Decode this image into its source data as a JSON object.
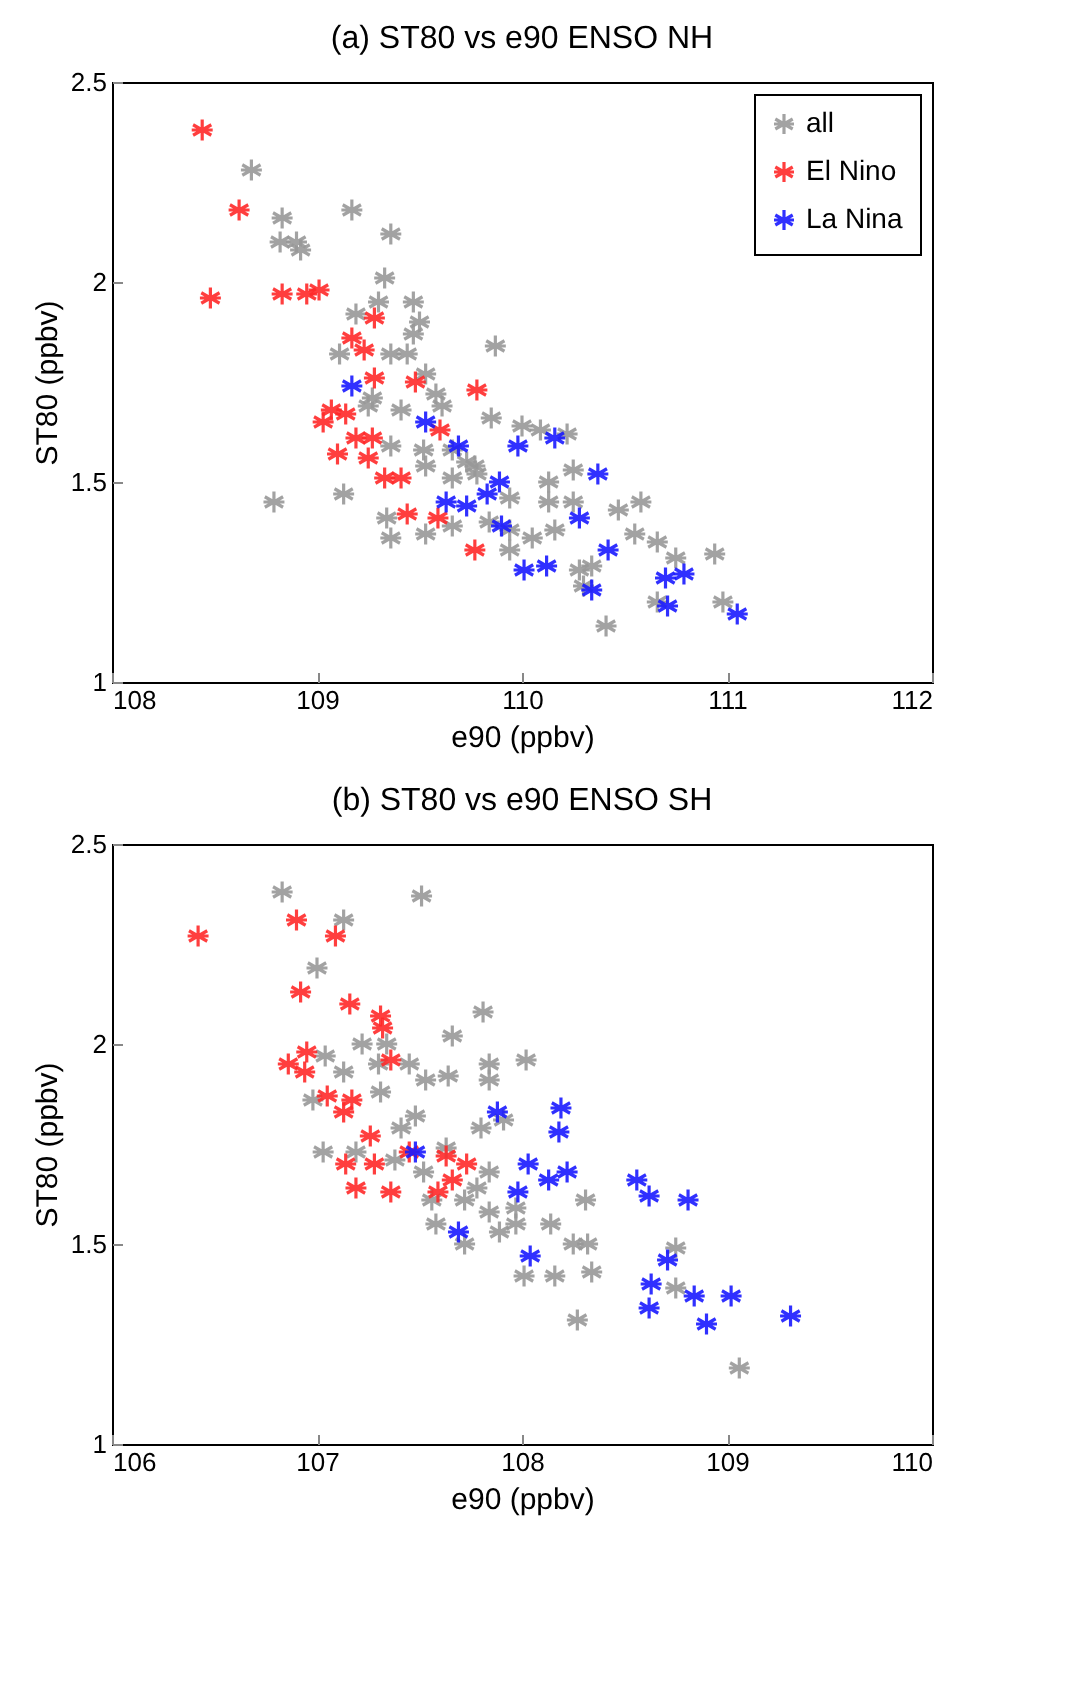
{
  "chart_data": [
    {
      "type": "scatter",
      "title": "(a) ST80 vs e90 ENSO NH",
      "xlabel": "e90 (ppbv)",
      "ylabel": "ST80 (ppbv)",
      "xlim": [
        108,
        112
      ],
      "xticks": [
        108,
        109,
        110,
        111,
        112
      ],
      "ylim": [
        1,
        2.5
      ],
      "yticks": [
        1,
        1.5,
        2,
        2.5
      ],
      "marker": "cross",
      "legend": "top right",
      "series": [
        {
          "name": "all",
          "color": "#999999",
          "x": [
            108.68,
            108.83,
            108.82,
            108.9,
            108.92,
            109.17,
            109.36,
            109.33,
            109.3,
            109.19,
            109.47,
            109.5,
            109.47,
            109.87,
            109.11,
            109.36,
            109.44,
            109.53,
            109.27,
            109.25,
            109.58,
            109.61,
            109.41,
            109.85,
            110.0,
            110.09,
            110.22,
            109.36,
            109.52,
            109.66,
            109.77,
            109.53,
            109.66,
            109.78,
            110.13,
            110.25,
            109.94,
            110.13,
            110.25,
            110.47,
            110.58,
            108.79,
            109.13,
            109.34,
            109.36,
            109.53,
            109.66,
            109.94,
            110.05,
            109.94,
            110.16,
            110.55,
            110.66,
            110.75,
            110.94,
            110.28,
            110.34,
            110.3,
            110.98,
            110.66,
            110.41,
            109.73,
            109.84
          ],
          "values": [
            2.28,
            2.16,
            2.1,
            2.1,
            2.08,
            2.18,
            2.12,
            2.01,
            1.95,
            1.92,
            1.95,
            1.9,
            1.87,
            1.84,
            1.82,
            1.82,
            1.82,
            1.77,
            1.71,
            1.69,
            1.72,
            1.69,
            1.68,
            1.66,
            1.64,
            1.63,
            1.62,
            1.59,
            1.58,
            1.58,
            1.54,
            1.54,
            1.51,
            1.52,
            1.5,
            1.53,
            1.46,
            1.45,
            1.45,
            1.43,
            1.45,
            1.45,
            1.47,
            1.41,
            1.36,
            1.37,
            1.39,
            1.38,
            1.36,
            1.33,
            1.38,
            1.37,
            1.35,
            1.31,
            1.32,
            1.28,
            1.29,
            1.24,
            1.2,
            1.2,
            1.14,
            1.55,
            1.4
          ]
        },
        {
          "name": "El Nino",
          "color": "#ff2a2a",
          "x": [
            108.44,
            108.62,
            108.48,
            108.83,
            108.95,
            109.01,
            109.28,
            109.17,
            109.23,
            109.28,
            109.48,
            109.78,
            109.07,
            109.14,
            109.03,
            109.1,
            109.19,
            109.27,
            109.25,
            109.33,
            109.41,
            109.44,
            109.59,
            109.6,
            109.77
          ],
          "values": [
            2.38,
            2.18,
            1.96,
            1.97,
            1.97,
            1.98,
            1.91,
            1.86,
            1.83,
            1.76,
            1.75,
            1.73,
            1.68,
            1.67,
            1.65,
            1.57,
            1.61,
            1.61,
            1.56,
            1.51,
            1.51,
            1.42,
            1.41,
            1.63,
            1.33
          ]
        },
        {
          "name": "La Nina",
          "color": "#1a1aff",
          "x": [
            109.17,
            109.53,
            109.69,
            109.98,
            110.16,
            110.37,
            109.89,
            109.83,
            109.63,
            109.73,
            109.9,
            110.28,
            110.42,
            110.01,
            110.12,
            110.34,
            110.7,
            110.79,
            110.71,
            111.05
          ],
          "values": [
            1.74,
            1.65,
            1.59,
            1.59,
            1.61,
            1.52,
            1.5,
            1.47,
            1.45,
            1.44,
            1.39,
            1.41,
            1.33,
            1.28,
            1.29,
            1.23,
            1.26,
            1.27,
            1.19,
            1.17
          ]
        }
      ]
    },
    {
      "type": "scatter",
      "title": "(b) ST80 vs e90 ENSO SH",
      "xlabel": "e90 (ppbv)",
      "ylabel": "ST80 (ppbv)",
      "xlim": [
        106,
        110
      ],
      "xticks": [
        106,
        107,
        108,
        109,
        110
      ],
      "ylim": [
        1,
        2.5
      ],
      "yticks": [
        1,
        1.5,
        2,
        2.5
      ],
      "marker": "cross",
      "series": [
        {
          "color": "#999999",
          "x": [
            106.83,
            107.51,
            107.13,
            107.0,
            107.81,
            107.66,
            107.22,
            107.34,
            107.04,
            107.13,
            107.3,
            107.45,
            107.53,
            107.64,
            107.84,
            107.84,
            108.02,
            107.31,
            106.98,
            107.48,
            107.41,
            107.8,
            107.91,
            107.03,
            107.19,
            107.38,
            107.52,
            107.63,
            107.84,
            107.72,
            107.84,
            107.97,
            107.58,
            107.72,
            107.89,
            108.14,
            108.31,
            108.25,
            108.32,
            108.34,
            108.16,
            108.01,
            108.27,
            108.75,
            108.75,
            109.06,
            107.78,
            107.97,
            107.56
          ],
          "values": [
            2.38,
            2.37,
            2.31,
            2.19,
            2.08,
            2.02,
            2.0,
            2.0,
            1.97,
            1.93,
            1.95,
            1.95,
            1.91,
            1.92,
            1.95,
            1.91,
            1.96,
            1.88,
            1.86,
            1.82,
            1.79,
            1.79,
            1.81,
            1.73,
            1.73,
            1.71,
            1.68,
            1.74,
            1.68,
            1.61,
            1.58,
            1.59,
            1.55,
            1.5,
            1.53,
            1.55,
            1.61,
            1.5,
            1.5,
            1.43,
            1.42,
            1.42,
            1.31,
            1.49,
            1.39,
            1.19,
            1.64,
            1.55,
            1.61
          ]
        },
        {
          "color": "#ff2a2a",
          "x": [
            106.42,
            106.9,
            107.09,
            106.92,
            107.16,
            107.31,
            107.32,
            106.95,
            106.86,
            106.94,
            107.36,
            107.05,
            107.17,
            107.13,
            107.26,
            107.14,
            107.28,
            107.19,
            107.36,
            107.45,
            107.63,
            107.73,
            107.66,
            107.59
          ],
          "values": [
            2.27,
            2.31,
            2.27,
            2.13,
            2.1,
            2.07,
            2.04,
            1.98,
            1.95,
            1.93,
            1.96,
            1.87,
            1.86,
            1.83,
            1.77,
            1.7,
            1.7,
            1.64,
            1.63,
            1.73,
            1.72,
            1.7,
            1.66,
            1.63
          ]
        },
        {
          "color": "#1a1aff",
          "x": [
            107.48,
            107.88,
            108.19,
            108.18,
            108.03,
            108.22,
            108.13,
            107.98,
            107.69,
            108.04,
            108.56,
            108.62,
            108.81,
            108.71,
            108.63,
            108.62,
            108.84,
            109.02,
            108.9,
            109.31
          ],
          "values": [
            1.73,
            1.83,
            1.84,
            1.78,
            1.7,
            1.68,
            1.66,
            1.63,
            1.53,
            1.47,
            1.66,
            1.62,
            1.61,
            1.46,
            1.4,
            1.34,
            1.37,
            1.37,
            1.3,
            1.32
          ]
        }
      ]
    }
  ]
}
